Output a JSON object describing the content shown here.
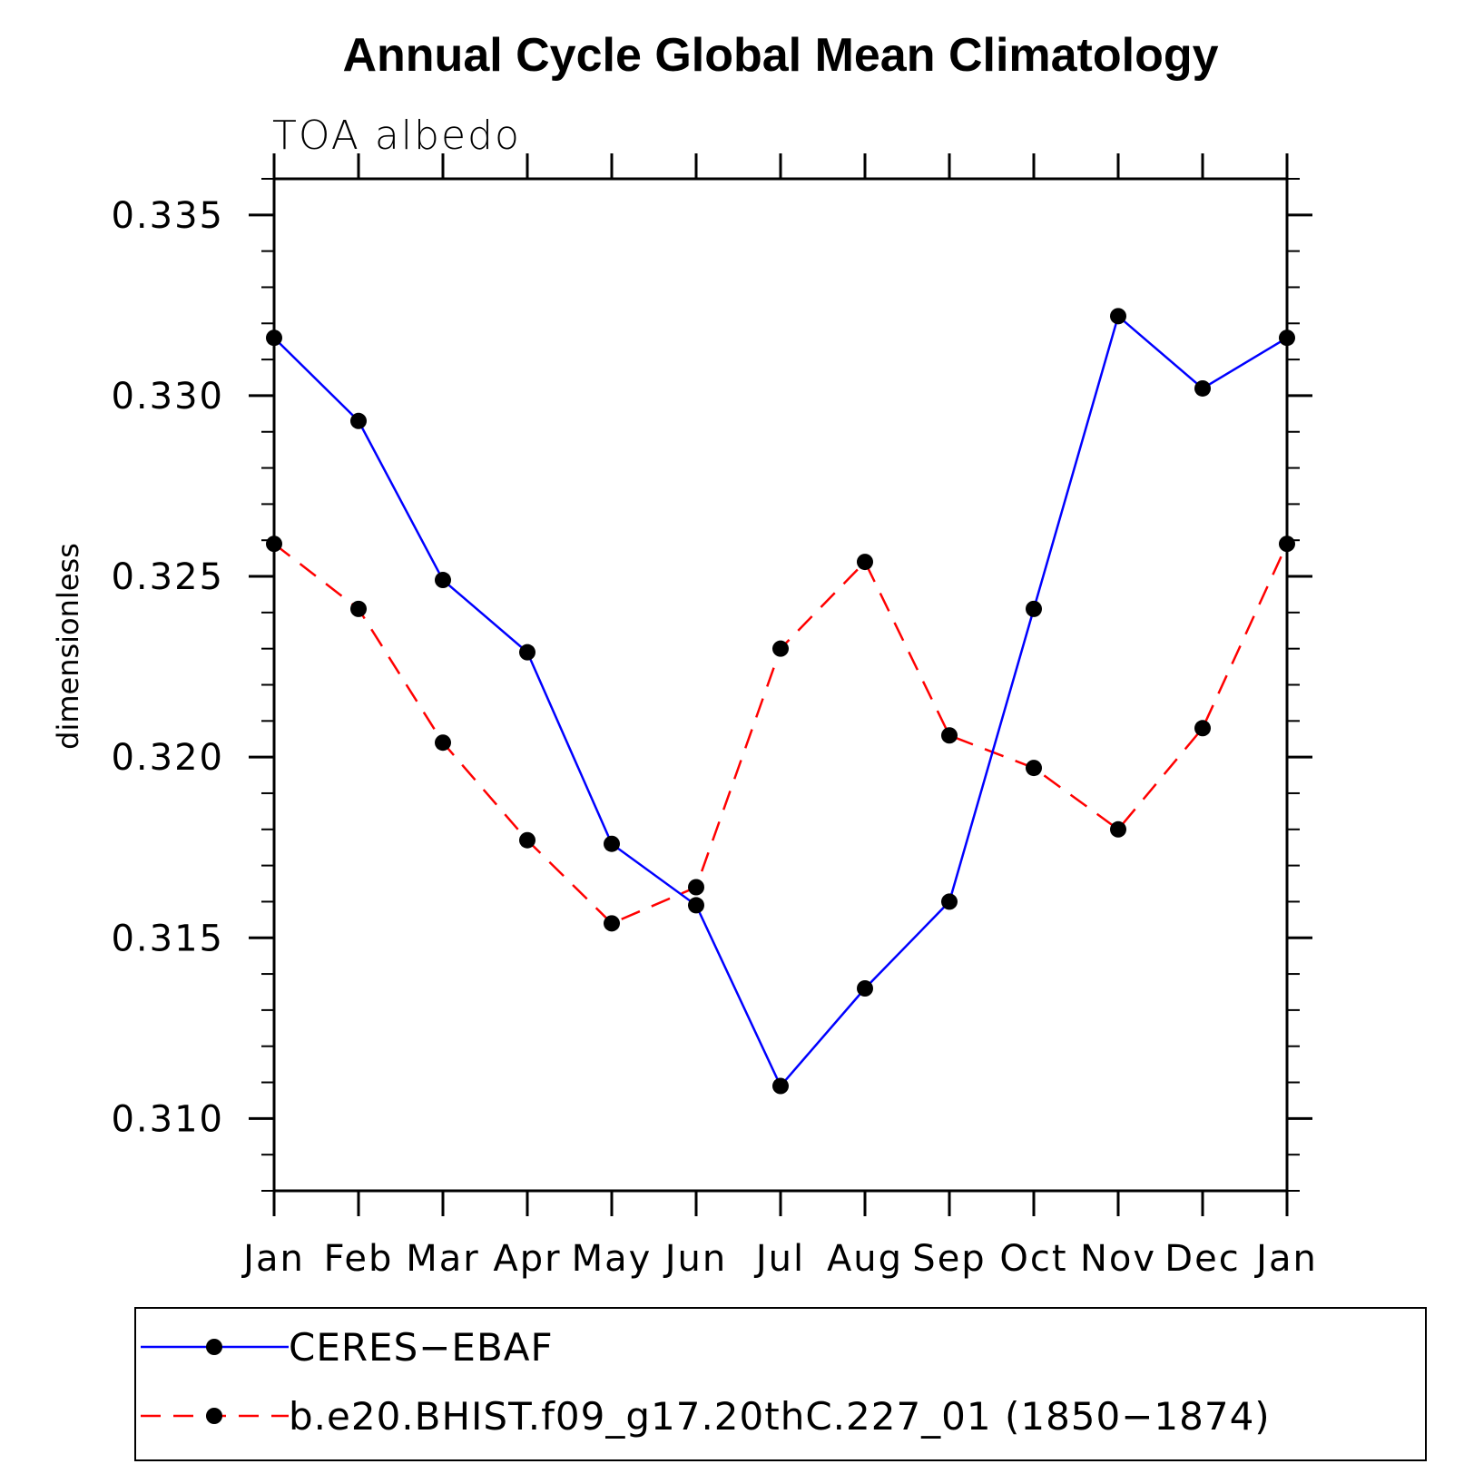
{
  "chart_data": {
    "type": "line",
    "title": "Annual Cycle Global Mean Climatology",
    "subtitle": "TOA albedo",
    "xlabel": "",
    "ylabel": "dimensionless",
    "categories": [
      "Jan",
      "Feb",
      "Mar",
      "Apr",
      "May",
      "Jun",
      "Jul",
      "Aug",
      "Sep",
      "Oct",
      "Nov",
      "Dec",
      "Jan"
    ],
    "ylim": [
      0.308,
      0.336
    ],
    "yticks": [
      0.31,
      0.315,
      0.32,
      0.325,
      0.33,
      0.335
    ],
    "ytick_labels": [
      "0.310",
      "0.315",
      "0.320",
      "0.325",
      "0.330",
      "0.335"
    ],
    "grid": false,
    "legend_position": "bottom",
    "series": [
      {
        "name": "CERES−EBAF",
        "color": "#0000ff",
        "style": "solid",
        "marker": "circle",
        "values": [
          0.3316,
          0.3293,
          0.3249,
          0.3229,
          0.3176,
          0.3159,
          0.3109,
          0.3136,
          0.316,
          0.3241,
          0.3322,
          0.3302,
          0.3316
        ]
      },
      {
        "name": "b.e20.BHIST.f09_g17.20thC.227_01 (1850−1874)",
        "color": "#ff0000",
        "style": "dashed",
        "marker": "circle",
        "values": [
          0.3259,
          0.3241,
          0.3204,
          0.3177,
          0.3154,
          0.3164,
          0.323,
          0.3254,
          0.3206,
          0.3197,
          0.318,
          0.3208,
          0.3259
        ]
      }
    ]
  }
}
